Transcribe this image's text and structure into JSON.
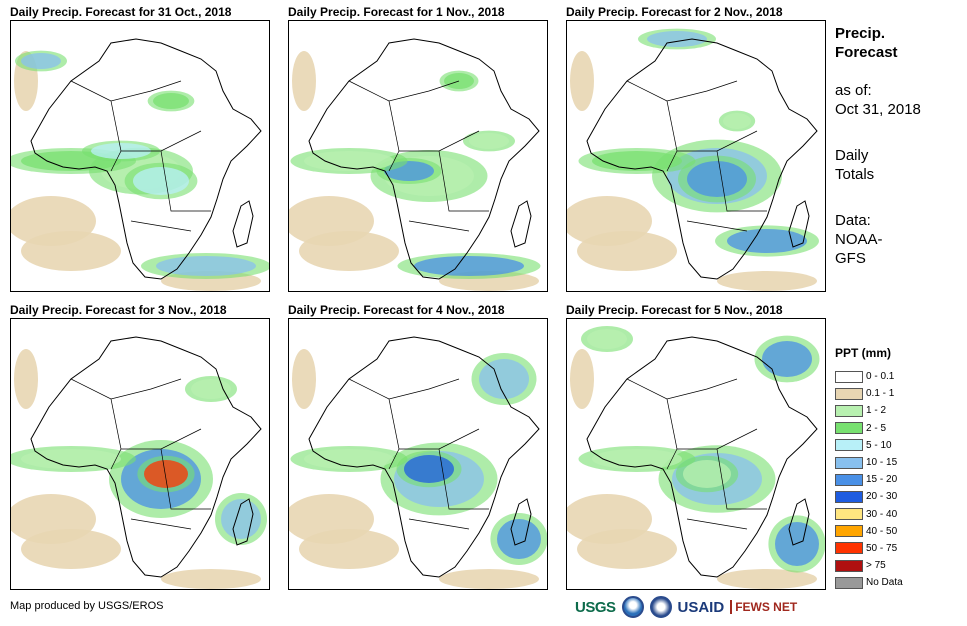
{
  "panels": [
    {
      "title": "Daily Precip. Forecast for 31 Oct., 2018"
    },
    {
      "title": "Daily Precip. Forecast for 1 Nov., 2018"
    },
    {
      "title": "Daily Precip. Forecast for 2 Nov., 2018"
    },
    {
      "title": "Daily Precip. Forecast for 3 Nov., 2018"
    },
    {
      "title": "Daily Precip. Forecast for 4 Nov., 2018"
    },
    {
      "title": "Daily Precip. Forecast for 5 Nov., 2018"
    }
  ],
  "side": {
    "title_line1": "Precip.",
    "title_line2": "Forecast",
    "asof_label": "as of:",
    "asof_date": "Oct 31, 2018",
    "totals_line1": "Daily",
    "totals_line2": "Totals",
    "data_label": "Data:",
    "data_source1": "NOAA-",
    "data_source2": "GFS"
  },
  "legend": {
    "title": "PPT (mm)",
    "items": [
      {
        "label": "0 - 0.1",
        "color": "#ffffff"
      },
      {
        "label": "0.1 - 1",
        "color": "#e8d6b3"
      },
      {
        "label": "1 - 2",
        "color": "#b8f0b0"
      },
      {
        "label": "2 - 5",
        "color": "#78e070"
      },
      {
        "label": "5 - 10",
        "color": "#b8f0f8"
      },
      {
        "label": "10 - 15",
        "color": "#88c0ee"
      },
      {
        "label": "15 - 20",
        "color": "#4a90e6"
      },
      {
        "label": "20 - 30",
        "color": "#1e5ce0"
      },
      {
        "label": "30 - 40",
        "color": "#ffe680"
      },
      {
        "label": "40 - 50",
        "color": "#ffa500"
      },
      {
        "label": "50 - 75",
        "color": "#ff3300"
      },
      {
        "label": "> 75",
        "color": "#b01010"
      },
      {
        "label": "No Data",
        "color": "#999999"
      }
    ]
  },
  "footer": {
    "credit": "Map produced by USGS/EROS"
  },
  "logos": {
    "usgs": "USGS",
    "usaid": "USAID",
    "fews": "FEWS NET"
  }
}
